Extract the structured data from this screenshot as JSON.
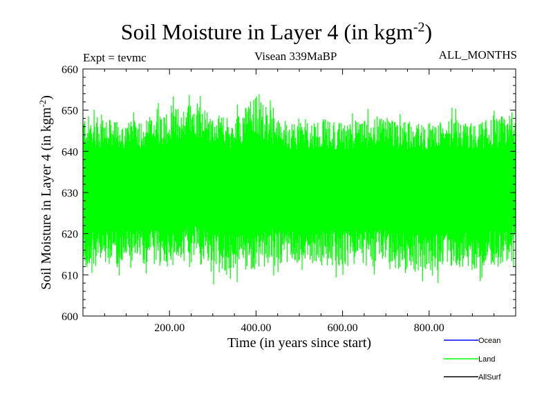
{
  "header": {
    "title_main": "Soil Moisture in Layer 4 (in kgm",
    "title_sup": "-2",
    "title_close": ")",
    "expt": "Expt = tevmc",
    "run": "Visean 339MaBP",
    "months": "ALL_MONTHS"
  },
  "chart_data": {
    "type": "line",
    "title": "Soil Moisture in Layer 4 (in kgm-2)",
    "xlabel": "Time (in years since start)",
    "ylabel_main": "Soil Moisture in Layer 4 (in kgm",
    "ylabel_sup": "-2",
    "ylabel_close": ")",
    "xlim": [
      0,
      1000
    ],
    "ylim": [
      600,
      660
    ],
    "x_ticks": [
      200,
      400,
      600,
      800
    ],
    "x_tick_labels": [
      "200.00",
      "400.00",
      "600.00",
      "800.00"
    ],
    "y_ticks": [
      600,
      610,
      620,
      630,
      640,
      650,
      660
    ],
    "y_tick_labels": [
      "600",
      "610",
      "620",
      "630",
      "640",
      "650",
      "660"
    ],
    "series": [
      {
        "name": "Ocean",
        "color": "#0000ff",
        "values": []
      },
      {
        "name": "Land",
        "color": "#00ff00",
        "mean": 632,
        "typical_min": 615,
        "typical_max": 648,
        "max": 656,
        "min": 606,
        "x": [
          0,
          100,
          200,
          260,
          300,
          350,
          400,
          450,
          500,
          550,
          600,
          650,
          700,
          750,
          800,
          850,
          900,
          950,
          1000
        ],
        "upper_envelope": [
          649,
          647,
          650,
          653,
          649,
          648,
          654,
          648,
          647,
          648,
          647,
          648,
          649,
          647,
          647,
          648,
          647,
          648,
          650
        ],
        "lower_envelope": [
          611,
          612,
          612,
          614,
          610,
          611,
          611,
          613,
          611,
          612,
          612,
          612,
          612,
          611,
          609,
          612,
          611,
          612,
          614
        ]
      },
      {
        "name": "AllSurf",
        "color": "#000000",
        "values": []
      }
    ],
    "legend": [
      "Ocean",
      "Land",
      "AllSurf"
    ],
    "legend_position": "bottom-right"
  }
}
